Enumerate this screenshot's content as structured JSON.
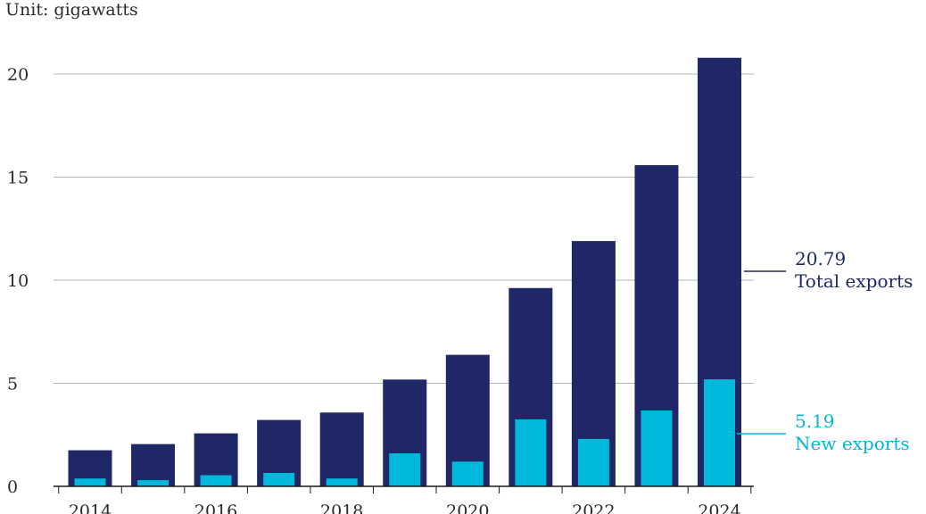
{
  "chart_data": {
    "type": "bar",
    "unit_label": "Unit: gigawatts",
    "categories": [
      "2014",
      "2015",
      "2016",
      "2017",
      "2018",
      "2019",
      "2020",
      "2021",
      "2022",
      "2023",
      "2024"
    ],
    "x_tick_labels": [
      "2014",
      "2016",
      "2018",
      "2020",
      "2022",
      "2024"
    ],
    "y_ticks": [
      0,
      5,
      10,
      15,
      20
    ],
    "ylim": [
      0,
      22
    ],
    "grid": true,
    "series": [
      {
        "name": "Total exports",
        "color": "#1f2766",
        "values": [
          1.75,
          2.05,
          2.57,
          3.22,
          3.58,
          5.18,
          6.38,
          9.62,
          11.9,
          15.58,
          20.79
        ],
        "end_label_value": "20.79",
        "end_label_name": "Total exports"
      },
      {
        "name": "New exports",
        "color": "#00b7dc",
        "values": [
          0.38,
          0.3,
          0.54,
          0.65,
          0.38,
          1.6,
          1.2,
          3.25,
          2.3,
          3.68,
          5.19
        ],
        "end_label_value": "5.19",
        "end_label_name": "New exports"
      }
    ],
    "colors": {
      "axis": "#1a1a1a",
      "grid": "#b5b5b5",
      "text": "#2b2b2b"
    }
  }
}
